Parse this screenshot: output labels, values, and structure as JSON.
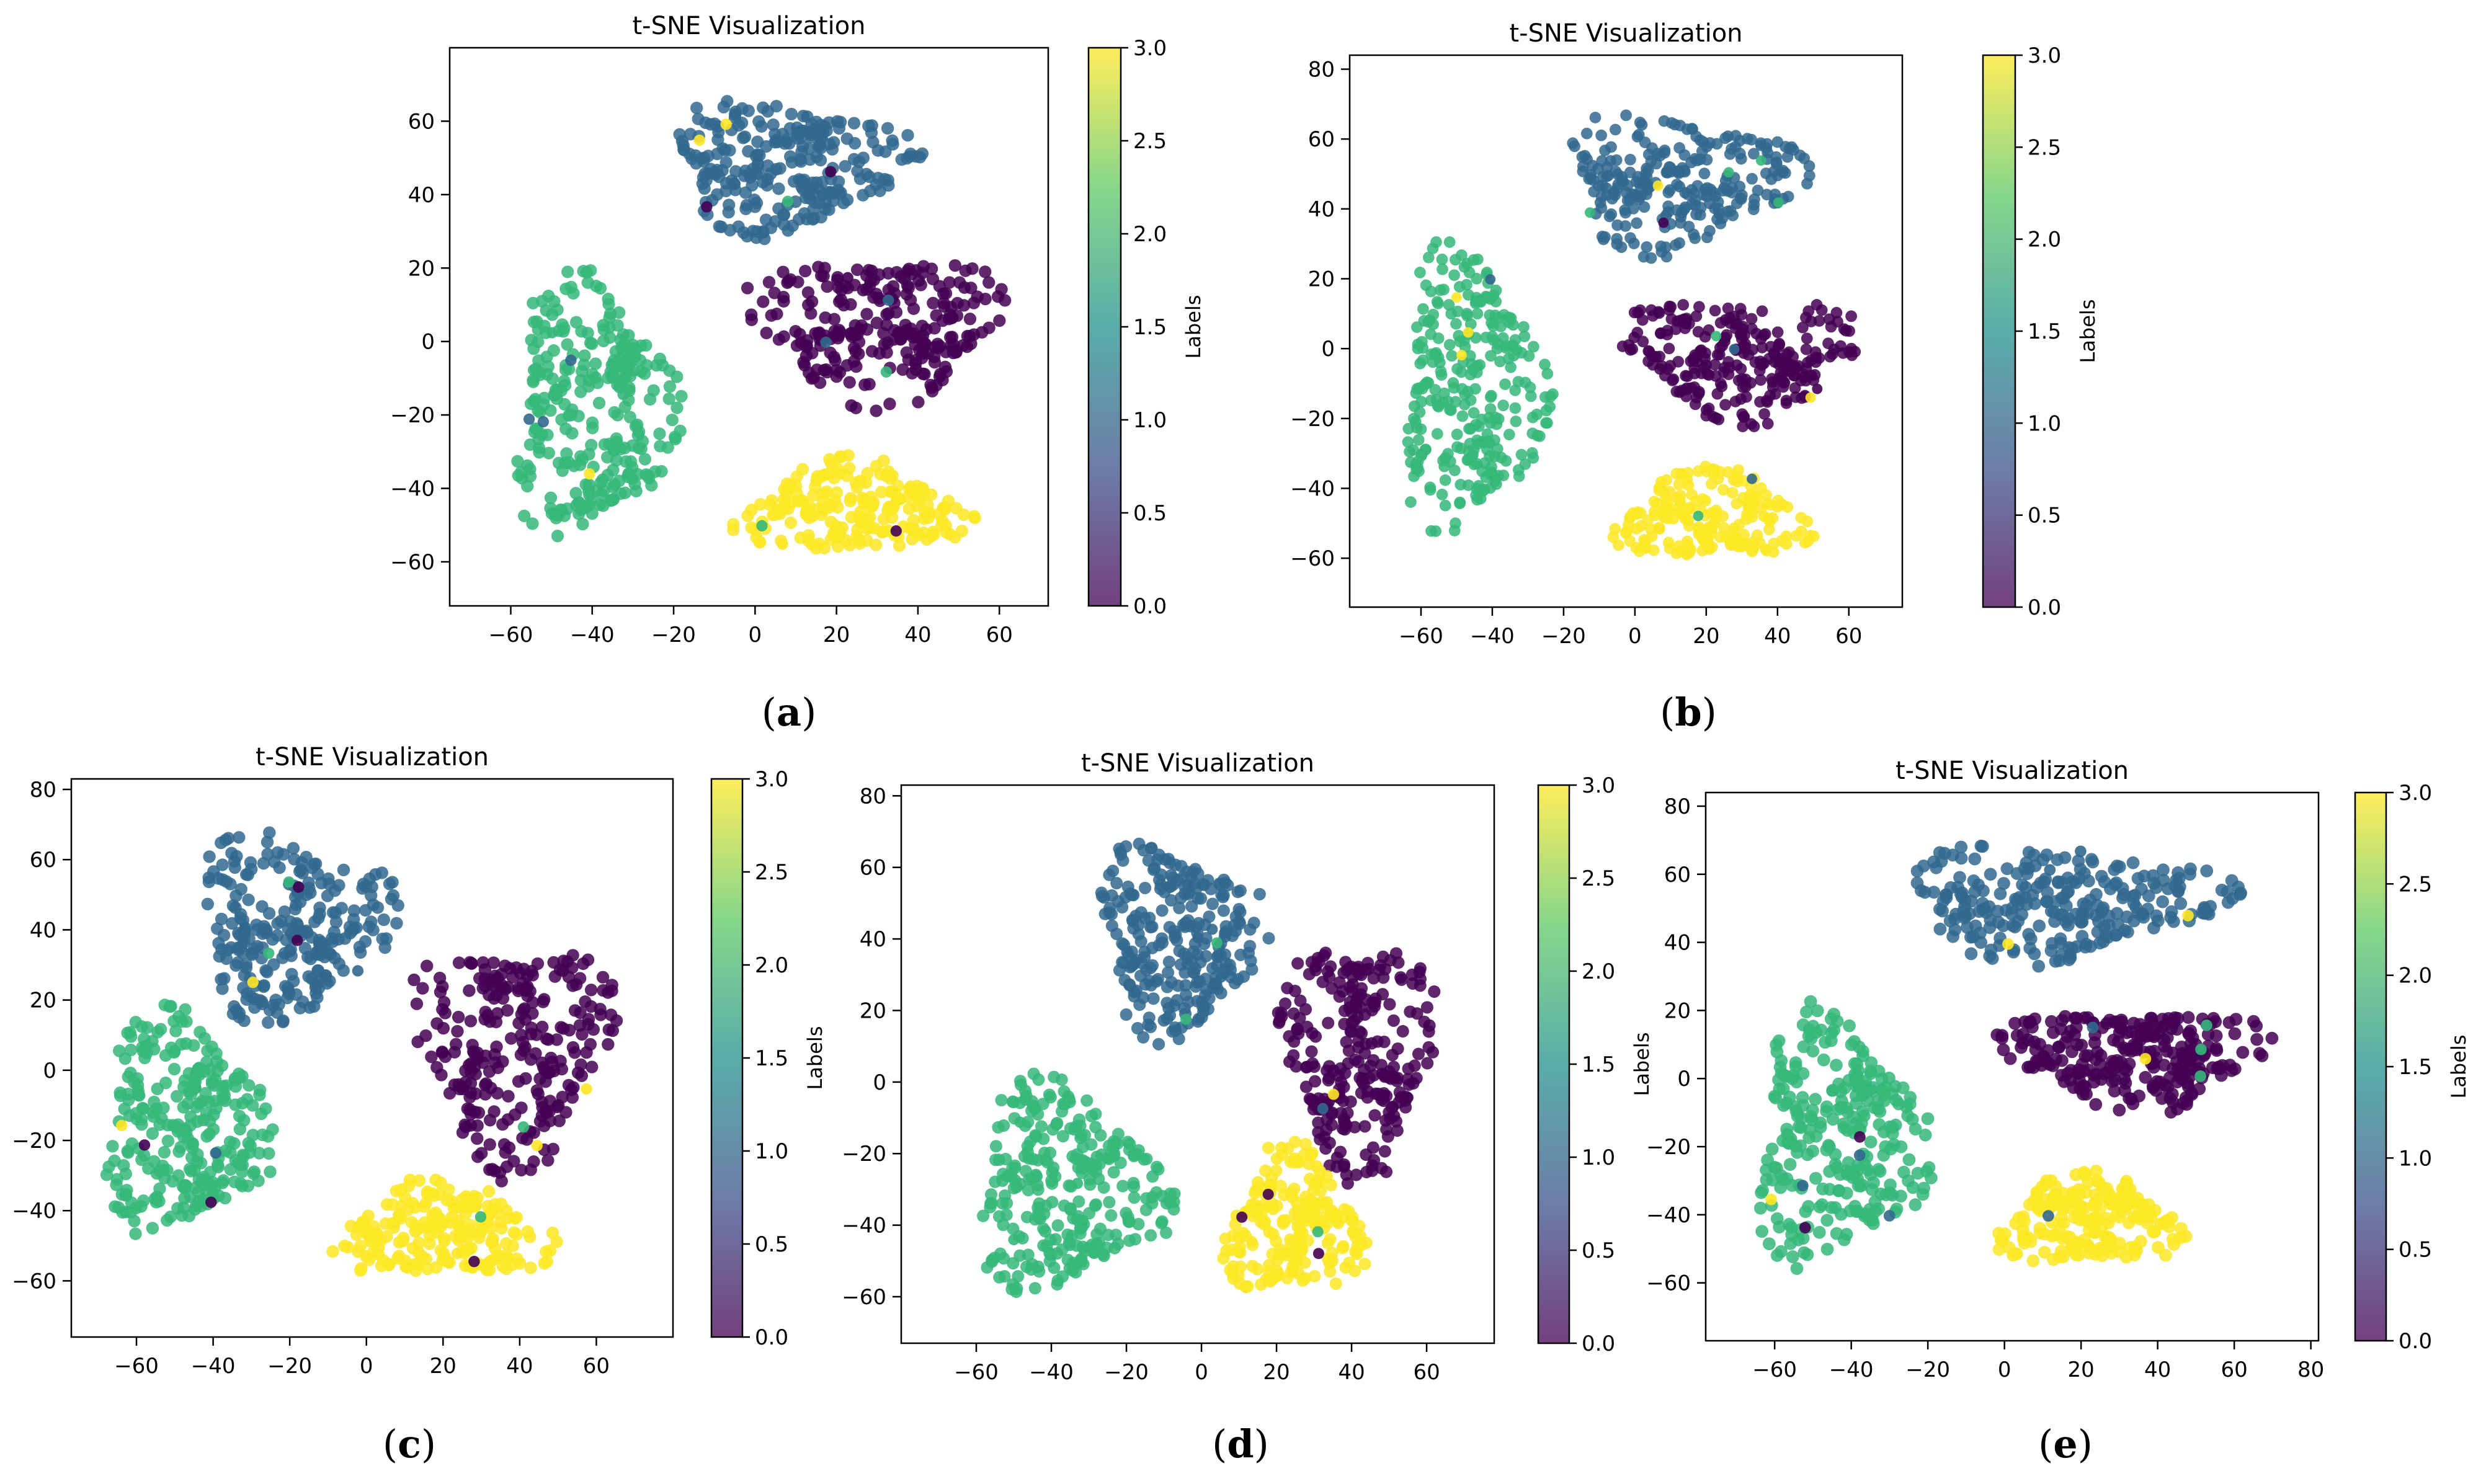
{
  "figure": {
    "description": "Five t-SNE scatter plots with viridis colorbars",
    "palette": {
      "viridis": [
        "#440154",
        "#3b528b",
        "#21918c",
        "#5ec962",
        "#fde725"
      ],
      "cluster_colors": {
        "0": "#440154",
        "1": "#31688e",
        "2": "#35b779",
        "3": "#fde725"
      }
    }
  },
  "chart_data": [
    {
      "id": "a",
      "type": "scatter",
      "title": "t-SNE Visualization",
      "caption_open": "(",
      "caption_letter": "a",
      "caption_close": ")",
      "xlabel": "",
      "ylabel": "",
      "xlim": [
        -75,
        72
      ],
      "ylim": [
        -72,
        80
      ],
      "xticks": [
        -60,
        -40,
        -20,
        0,
        20,
        40,
        60
      ],
      "xtick_labels": [
        "−60",
        "−40",
        "−20",
        "0",
        "20",
        "40",
        "60"
      ],
      "yticks": [
        -60,
        -40,
        -20,
        0,
        20,
        40,
        60
      ],
      "ytick_labels": [
        "−60",
        "−40",
        "−20",
        "0",
        "20",
        "40",
        "60"
      ],
      "colorbar": {
        "label": "Labels",
        "range": [
          0,
          3
        ],
        "ticks": [
          0.0,
          0.5,
          1.0,
          1.5,
          2.0,
          2.5,
          3.0
        ],
        "tick_labels": [
          "0.0",
          "0.5",
          "1.0",
          "1.5",
          "2.0",
          "2.5",
          "3.0"
        ]
      },
      "clusters": [
        {
          "label": 1,
          "center": [
            8,
            48
          ],
          "extent": [
            34,
            21
          ],
          "n": 260
        },
        {
          "label": 0,
          "center": [
            30,
            4
          ],
          "extent": [
            36,
            24
          ],
          "n": 260
        },
        {
          "label": 2,
          "center": [
            -40,
            -18
          ],
          "extent": [
            24,
            42
          ],
          "n": 280
        },
        {
          "label": 3,
          "center": [
            24,
            -46
          ],
          "extent": [
            34,
            15
          ],
          "n": 200
        }
      ]
    },
    {
      "id": "b",
      "type": "scatter",
      "title": "t-SNE Visualization",
      "caption_open": "(",
      "caption_letter": "b",
      "caption_close": ")",
      "xlabel": "",
      "ylabel": "",
      "xlim": [
        -80,
        75
      ],
      "ylim": [
        -74,
        84
      ],
      "xticks": [
        -60,
        -40,
        -20,
        0,
        20,
        40,
        60
      ],
      "xtick_labels": [
        "−60",
        "−40",
        "−20",
        "0",
        "20",
        "40",
        "60"
      ],
      "yticks": [
        -60,
        -40,
        -20,
        0,
        20,
        40,
        60,
        80
      ],
      "ytick_labels": [
        "−60",
        "−40",
        "−20",
        "0",
        "20",
        "40",
        "60",
        "80"
      ],
      "colorbar": {
        "label": "Labels",
        "range": [
          0,
          3
        ],
        "ticks": [
          0.0,
          0.5,
          1.0,
          1.5,
          2.0,
          2.5,
          3.0
        ],
        "tick_labels": [
          "0.0",
          "0.5",
          "1.0",
          "1.5",
          "2.0",
          "2.5",
          "3.0"
        ]
      },
      "clusters": [
        {
          "label": 1,
          "center": [
            12,
            48
          ],
          "extent": [
            38,
            23
          ],
          "n": 260
        },
        {
          "label": 0,
          "center": [
            30,
            -2
          ],
          "extent": [
            38,
            21
          ],
          "n": 260
        },
        {
          "label": 2,
          "center": [
            -46,
            -12
          ],
          "extent": [
            24,
            48
          ],
          "n": 280
        },
        {
          "label": 3,
          "center": [
            22,
            -48
          ],
          "extent": [
            32,
            15
          ],
          "n": 200
        }
      ]
    },
    {
      "id": "c",
      "type": "scatter",
      "title": "t-SNE Visualization",
      "caption_open": "(",
      "caption_letter": "c",
      "caption_close": ")",
      "xlabel": "",
      "ylabel": "",
      "xlim": [
        -77,
        80
      ],
      "ylim": [
        -76,
        83
      ],
      "xticks": [
        -60,
        -40,
        -20,
        0,
        20,
        40,
        60
      ],
      "xtick_labels": [
        "−60",
        "−40",
        "−20",
        "0",
        "20",
        "40",
        "60"
      ],
      "yticks": [
        -60,
        -40,
        -20,
        0,
        20,
        40,
        60,
        80
      ],
      "ytick_labels": [
        "−60",
        "−40",
        "−20",
        "0",
        "20",
        "40",
        "60",
        "80"
      ],
      "colorbar": {
        "label": "Labels",
        "range": [
          0,
          3
        ],
        "ticks": [
          0.0,
          0.5,
          1.0,
          1.5,
          2.0,
          2.5,
          3.0
        ],
        "tick_labels": [
          "0.0",
          "0.5",
          "1.0",
          "1.5",
          "2.0",
          "2.5",
          "3.0"
        ]
      },
      "clusters": [
        {
          "label": 1,
          "center": [
            -20,
            42
          ],
          "extent": [
            30,
            32
          ],
          "n": 260
        },
        {
          "label": 0,
          "center": [
            38,
            6
          ],
          "extent": [
            30,
            38
          ],
          "n": 260
        },
        {
          "label": 2,
          "center": [
            -48,
            -16
          ],
          "extent": [
            26,
            38
          ],
          "n": 280
        },
        {
          "label": 3,
          "center": [
            20,
            -46
          ],
          "extent": [
            34,
            16
          ],
          "n": 200
        }
      ]
    },
    {
      "id": "d",
      "type": "scatter",
      "title": "t-SNE Visualization",
      "caption_open": "(",
      "caption_letter": "d",
      "caption_close": ")",
      "xlabel": "",
      "ylabel": "",
      "xlim": [
        -80,
        78
      ],
      "ylim": [
        -73,
        83
      ],
      "xticks": [
        -60,
        -40,
        -20,
        0,
        20,
        40,
        60
      ],
      "xtick_labels": [
        "−60",
        "−40",
        "−20",
        "0",
        "20",
        "40",
        "60"
      ],
      "yticks": [
        -60,
        -40,
        -20,
        0,
        20,
        40,
        60,
        80
      ],
      "ytick_labels": [
        "−60",
        "−40",
        "−20",
        "0",
        "20",
        "40",
        "60",
        "80"
      ],
      "colorbar": {
        "label": "Labels",
        "range": [
          0,
          3
        ],
        "ticks": [
          0.0,
          0.5,
          1.0,
          1.5,
          2.0,
          2.5,
          3.0
        ],
        "tick_labels": [
          "0.0",
          "0.5",
          "1.0",
          "1.5",
          "2.0",
          "2.5",
          "3.0"
        ]
      },
      "clusters": [
        {
          "label": 1,
          "center": [
            -6,
            40
          ],
          "extent": [
            26,
            32
          ],
          "n": 260
        },
        {
          "label": 0,
          "center": [
            42,
            8
          ],
          "extent": [
            24,
            40
          ],
          "n": 260
        },
        {
          "label": 2,
          "center": [
            -36,
            -30
          ],
          "extent": [
            30,
            34
          ],
          "n": 280
        },
        {
          "label": 3,
          "center": [
            24,
            -40
          ],
          "extent": [
            22,
            24
          ],
          "n": 200
        }
      ]
    },
    {
      "id": "e",
      "type": "scatter",
      "title": "t-SNE Visualization",
      "caption_open": "(",
      "caption_letter": "e",
      "caption_close": ")",
      "xlabel": "",
      "ylabel": "",
      "xlim": [
        -78,
        82
      ],
      "ylim": [
        -77,
        84
      ],
      "xticks": [
        -60,
        -40,
        -20,
        0,
        20,
        40,
        60,
        80
      ],
      "xtick_labels": [
        "−60",
        "−40",
        "−20",
        "0",
        "20",
        "40",
        "60",
        "80"
      ],
      "yticks": [
        -60,
        -40,
        -20,
        0,
        20,
        40,
        60,
        80
      ],
      "ytick_labels": [
        "−60",
        "−40",
        "−20",
        "0",
        "20",
        "40",
        "60",
        "80"
      ],
      "colorbar": {
        "label": "Labels",
        "range": [
          0,
          3
        ],
        "ticks": [
          0.0,
          0.5,
          1.0,
          1.5,
          2.0,
          2.5,
          3.0
        ],
        "tick_labels": [
          "0.0",
          "0.5",
          "1.0",
          "1.5",
          "2.0",
          "2.5",
          "3.0"
        ]
      },
      "clusters": [
        {
          "label": 1,
          "center": [
            14,
            52
          ],
          "extent": [
            50,
            20
          ],
          "n": 260
        },
        {
          "label": 0,
          "center": [
            34,
            6
          ],
          "extent": [
            40,
            18
          ],
          "n": 260
        },
        {
          "label": 2,
          "center": [
            -44,
            -18
          ],
          "extent": [
            26,
            44
          ],
          "n": 280
        },
        {
          "label": 3,
          "center": [
            22,
            -42
          ],
          "extent": [
            28,
            16
          ],
          "n": 200
        }
      ]
    }
  ]
}
